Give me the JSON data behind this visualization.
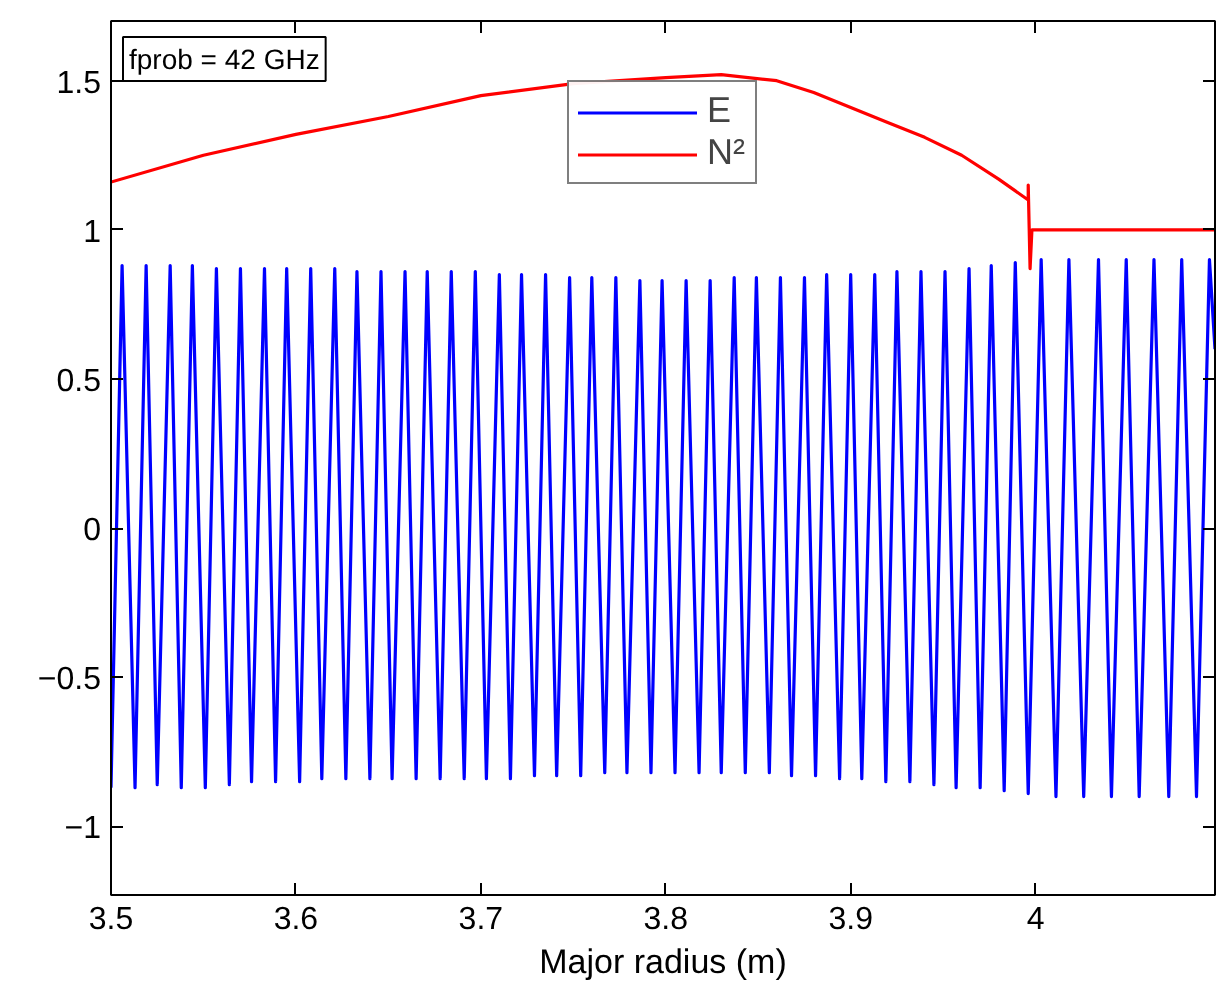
{
  "chart_data": {
    "type": "line",
    "xlabel": "Major radius (m)",
    "annotations": [
      "fprob = 42 GHz"
    ],
    "xlim": [
      3.5,
      4.097
    ],
    "ylim": [
      -1.23,
      1.7
    ],
    "xticks": [
      3.5,
      3.6,
      3.7,
      3.8,
      3.9,
      {
        "value": 4.0,
        "label": "4"
      }
    ],
    "yticks": [
      -1,
      -0.5,
      0,
      0.5,
      1,
      1.5
    ],
    "grid": false,
    "legend": "top",
    "line_style": "solid",
    "marker": "none",
    "series": [
      {
        "name": "E",
        "color": "#0000ff",
        "x": [
          3.5,
          3.506,
          3.513,
          3.519,
          3.525,
          3.532,
          3.538,
          3.544,
          3.551,
          3.557,
          3.564,
          3.57,
          3.576,
          3.583,
          3.589,
          3.595,
          3.602,
          3.608,
          3.614,
          3.621,
          3.627,
          3.633,
          3.64,
          3.646,
          3.652,
          3.659,
          3.665,
          3.671,
          3.678,
          3.684,
          3.691,
          3.697,
          3.703,
          3.71,
          3.716,
          3.722,
          3.729,
          3.735,
          3.741,
          3.748,
          3.754,
          3.76,
          3.767,
          3.773,
          3.779,
          3.786,
          3.792,
          3.798,
          3.805,
          3.811,
          3.818,
          3.824,
          3.83,
          3.837,
          3.843,
          3.849,
          3.856,
          3.862,
          3.868,
          3.875,
          3.881,
          3.887,
          3.894,
          3.9,
          3.906,
          3.913,
          3.919,
          3.925,
          3.932,
          3.938,
          3.945,
          3.951,
          3.957,
          3.964,
          3.97,
          3.976,
          3.983,
          3.989,
          3.996,
          4.003,
          4.011,
          4.018,
          4.026,
          4.034,
          4.041,
          4.049,
          4.056,
          4.064,
          4.072,
          4.079,
          4.087,
          4.094,
          4.097
        ],
        "values": [
          -0.87,
          0.88,
          -0.87,
          0.88,
          -0.86,
          0.88,
          -0.87,
          0.88,
          -0.87,
          0.87,
          -0.86,
          0.87,
          -0.85,
          0.87,
          -0.85,
          0.87,
          -0.85,
          0.87,
          -0.84,
          0.87,
          -0.84,
          0.86,
          -0.84,
          0.86,
          -0.84,
          0.86,
          -0.84,
          0.86,
          -0.84,
          0.86,
          -0.84,
          0.86,
          -0.84,
          0.85,
          -0.84,
          0.85,
          -0.83,
          0.85,
          -0.83,
          0.84,
          -0.83,
          0.84,
          -0.82,
          0.84,
          -0.82,
          0.83,
          -0.82,
          0.83,
          -0.82,
          0.83,
          -0.82,
          0.83,
          -0.82,
          0.84,
          -0.82,
          0.84,
          -0.82,
          0.84,
          -0.83,
          0.84,
          -0.83,
          0.85,
          -0.84,
          0.85,
          -0.84,
          0.85,
          -0.85,
          0.86,
          -0.85,
          0.86,
          -0.86,
          0.86,
          -0.87,
          0.87,
          -0.87,
          0.88,
          -0.88,
          0.89,
          -0.89,
          0.9,
          -0.9,
          0.9,
          -0.9,
          0.9,
          -0.9,
          0.9,
          -0.9,
          0.9,
          -0.9,
          0.9,
          -0.9,
          0.9,
          0.6
        ]
      },
      {
        "name": "N²",
        "color": "#ff0000",
        "x": [
          3.5,
          3.55,
          3.6,
          3.65,
          3.7,
          3.75,
          3.8,
          3.83,
          3.86,
          3.88,
          3.9,
          3.92,
          3.94,
          3.96,
          3.98,
          3.996,
          3.996,
          3.997,
          3.998,
          4.097
        ],
        "values": [
          1.16,
          1.25,
          1.32,
          1.38,
          1.45,
          1.49,
          1.51,
          1.52,
          1.5,
          1.46,
          1.41,
          1.36,
          1.31,
          1.25,
          1.17,
          1.1,
          1.15,
          0.87,
          1.0,
          1.0
        ]
      }
    ]
  }
}
